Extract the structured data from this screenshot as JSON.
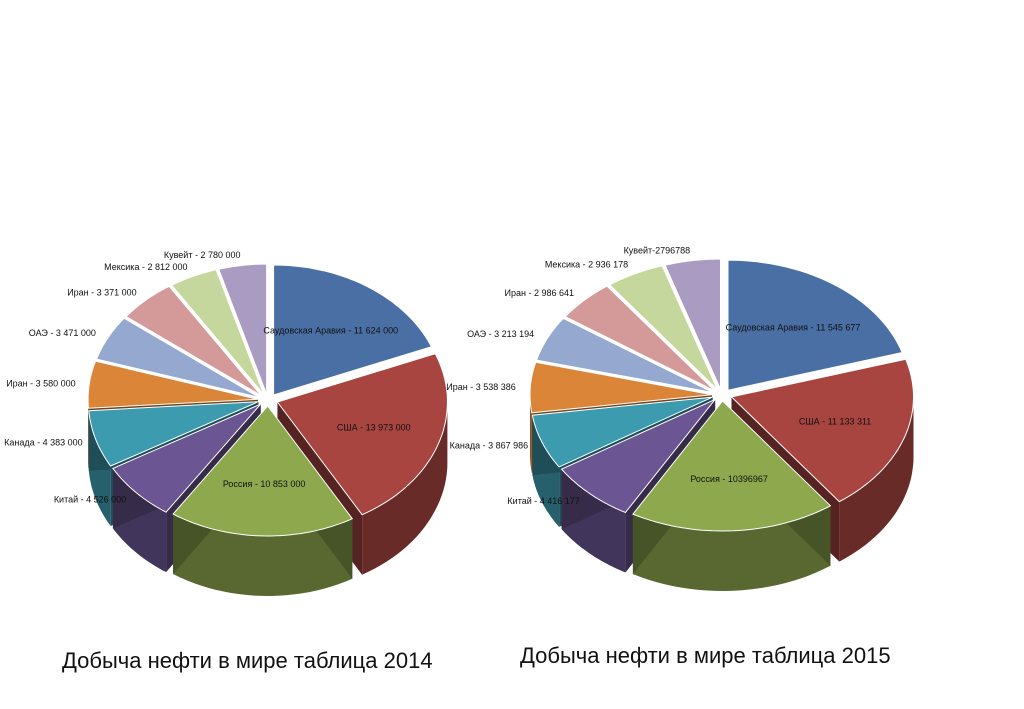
{
  "chart_data": [
    {
      "type": "pie",
      "title": "Добыча нефти в мире таблица 2014",
      "categories": [
        "Саудовская Аравия",
        "США",
        "Россия",
        "Китай",
        "Канада",
        "Иран",
        "ОАЭ",
        "Иран",
        "Мексика",
        "Кувейт"
      ],
      "values": [
        11624000,
        13973000,
        10853000,
        4526000,
        4383000,
        3580000,
        3471000,
        3371000,
        2812000,
        2780000
      ],
      "labels": [
        "Саудовская Аравия - 11 624 000",
        "США - 13 973 000",
        "Россия - 10 853 000",
        "Китай - 4 526 000",
        "Канада - 4 383 000",
        "Иран - 3 580 000",
        "ОАЭ - 3 471 000",
        "Иран - 3 371 000",
        "Мексика - 2 812 000",
        "Кувейт - 2 780 000"
      ]
    },
    {
      "type": "pie",
      "title": "Добыча нефти в мире таблица 2015",
      "categories": [
        "Саудовская Аравия",
        "США",
        "Россия",
        "Китай",
        "Канада",
        "Иран",
        "ОАЭ",
        "Иран",
        "Мексика",
        "Кувейт"
      ],
      "values": [
        11545677,
        11133311,
        10396967,
        4416177,
        3867986,
        3538386,
        3213194,
        2986641,
        2936178,
        2796788
      ],
      "labels": [
        "Саудовская Аравия - 11 545 677",
        "США - 11 133 311",
        "Россия - 10396967",
        "Китай - 4 416 177",
        "Канада - 3 867 986",
        "Иран - 3 538 386",
        "ОАЭ - 3 213 194",
        "Иран - 2 986 641",
        "Мексика - 2 936 178",
        "Кувейт-2796788"
      ]
    }
  ],
  "colors": [
    "#4a6fa5",
    "#a94541",
    "#8ea84e",
    "#6b5592",
    "#3d9bb0",
    "#db8539",
    "#94a8d0",
    "#d49a99",
    "#c5d79c",
    "#a99bc2"
  ],
  "captions": {
    "chart1": "Добыча нефти в мире таблица 2014",
    "chart2": "Добыча нефти в мире таблица 2015"
  }
}
